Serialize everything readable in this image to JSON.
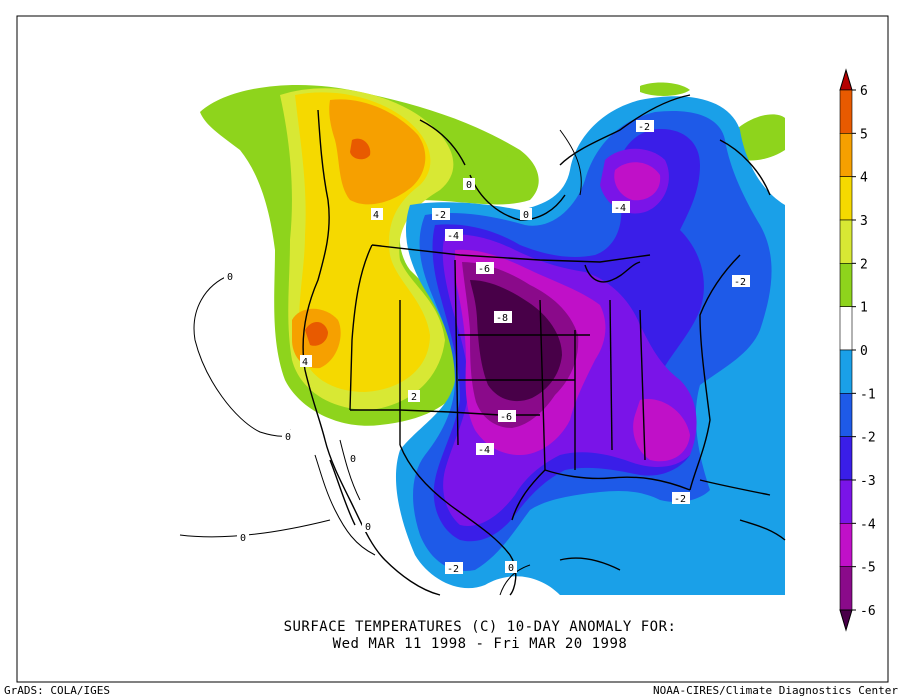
{
  "title": {
    "line1": "SURFACE TEMPERATURES (C)   10-DAY ANOMALY FOR:",
    "line2": "Wed MAR 11 1998 - Fri MAR 20 1998"
  },
  "footer": {
    "left": "GrADS: COLA/IGES",
    "right": "NOAA-CIRES/Climate Diagnostics Center"
  },
  "colorbar": {
    "levels": [
      "6",
      "5",
      "4",
      "3",
      "2",
      "1",
      "0",
      "-1",
      "-2",
      "-3",
      "-4",
      "-5",
      "-6"
    ],
    "colors": [
      "#b40000",
      "#e85a00",
      "#f6a000",
      "#f5d900",
      "#d8e834",
      "#8ed41c",
      "#ffffff",
      "#1aa0e8",
      "#1e5ae8",
      "#3a1ee8",
      "#7a14e8",
      "#c010c8",
      "#8a0a8a",
      "#480048"
    ]
  },
  "contour_labels": {
    "c_p4_north": "4",
    "c_p4_west": "4",
    "c_p2": "2",
    "c_0_arctic": "0",
    "c_0_pac": "0",
    "c_0_pac2": "0",
    "c_0_baja": "0",
    "c_0_baja2": "0",
    "c_0_mexico": "0",
    "c_0_gulf": "0",
    "c_m2_atl": "-2",
    "c_m2_lab": "-2",
    "c_m2_ne": "-2",
    "c_m2_mex": "-2",
    "c_m2_se": "-2",
    "c_m4_hud": "-4",
    "c_m4_can": "-4",
    "c_m4_tx": "-4",
    "c_m6_n": "-6",
    "c_m6_s": "-6",
    "c_m8": "-8"
  }
}
